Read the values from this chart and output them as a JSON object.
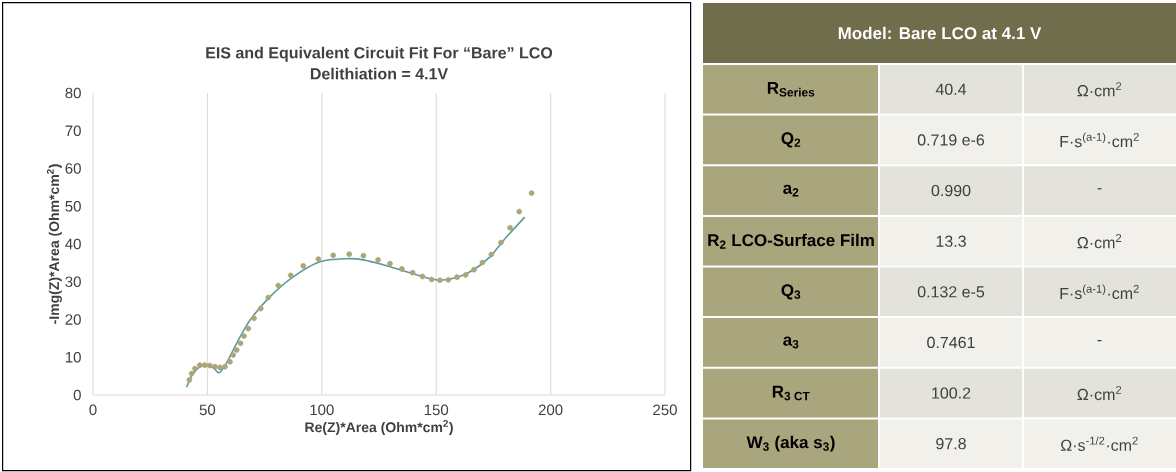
{
  "chart_data": [
    {
      "type": "scatter",
      "title": "EIS and Equivalent Circuit Fit For “Bare” LCO",
      "subtitle": "Delithiation = 4.1V",
      "xlabel": "Re(Z)*Area (Ohm*cm$^{2}$)",
      "ylabel": "-Img(Z)*Area (Ohm*cm$^{2}$)",
      "xlim": [
        0,
        250
      ],
      "xticks": [
        0,
        50,
        100,
        150,
        200,
        250
      ],
      "ylim": [
        0,
        80
      ],
      "yticks": [
        0,
        10,
        20,
        30,
        40,
        50,
        60,
        70,
        80
      ],
      "grid": "x",
      "series": [
        {
          "type": "scatter",
          "color": "#aba57b",
          "x": [
            42.1,
            43.1,
            44.5,
            46.7,
            48.9,
            51.1,
            53.3,
            55.5,
            57.7,
            59.9,
            61.3,
            62.8,
            64.5,
            66.0,
            67.9,
            70.4,
            73.3,
            76.6,
            81.0,
            86.4,
            91.9,
            98.5,
            105.0,
            112.0,
            118.2,
            124.6,
            129.8,
            135.0,
            139.7,
            144.0,
            148.0,
            151.6,
            155.3,
            159.1,
            162.9,
            166.5,
            170.2,
            174.1,
            178.3,
            182.3,
            186.3,
            191.7
          ],
          "values": [
            4.0,
            5.7,
            7.0,
            7.9,
            7.9,
            7.8,
            7.5,
            7.3,
            7.5,
            8.8,
            10.6,
            11.9,
            13.7,
            15.6,
            17.6,
            20.3,
            22.9,
            25.8,
            29.0,
            31.7,
            34.2,
            36.0,
            37.0,
            37.3,
            36.9,
            35.8,
            34.8,
            33.4,
            32.4,
            31.4,
            30.6,
            30.4,
            30.5,
            31.2,
            31.8,
            33.2,
            35.1,
            37.2,
            40.4,
            44.3,
            48.6,
            53.5
          ]
        },
        {
          "type": "line",
          "color": "#5a9c9c",
          "x": [
            41.0,
            43.5,
            46.7,
            50.3,
            53.0,
            55.1,
            58.3,
            62.8,
            68.6,
            77.3,
            87.5,
            99.2,
            110.9,
            118.2,
            126.9,
            135.6,
            144.4,
            151.6,
            158.9,
            166.2,
            173.5,
            180.8,
            188.5
          ],
          "values": [
            2.2,
            5.5,
            7.5,
            7.9,
            7.0,
            5.9,
            8.4,
            13.7,
            19.8,
            26.0,
            31.3,
            35.3,
            36.1,
            35.8,
            34.5,
            32.9,
            31.3,
            30.4,
            31.1,
            33.1,
            36.6,
            41.9,
            47.0
          ]
        }
      ]
    },
    {
      "type": "other",
      "title": "Model: Bare LCO at 4.1 V",
      "categories": [
        "R$_{Series}$",
        "Q$_{2}$",
        "a$_{2}$",
        "R$_{2}$ LCO-Surface Film",
        "Q$_{3}$",
        "a$_{3}$",
        "R$_{3 CT}$",
        "W$_{3}$ (aka s$_{3}$)"
      ],
      "annotations": [
        "40.4",
        "Ω·cm$^{2}$",
        "0.719 e-6",
        "F·s$^{(a-1)}$·cm$^{2}$",
        "0.990",
        "-",
        "13.3",
        "Ω·cm$^{2}$",
        "0.132 e-5",
        "F·s$^{(a-1)}$·cm$^{2}$",
        "0.7461",
        "-",
        "100.2",
        "Ω·cm$^{2}$",
        "97.8",
        "Ω·s$^{-1/2}$·cm$^{2}$"
      ]
    }
  ]
}
